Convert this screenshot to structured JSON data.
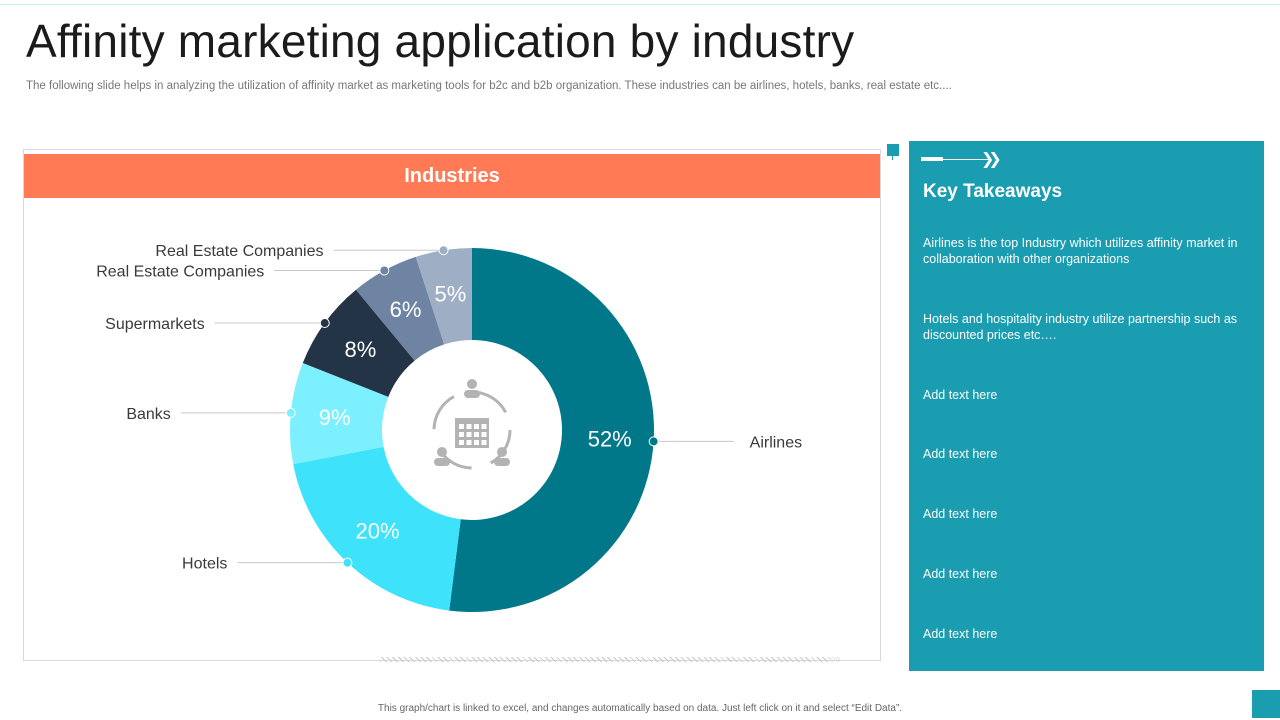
{
  "slide": {
    "title": "Affinity marketing application by industry",
    "subtitle": "The following slide helps in analyzing the utilization of affinity market as marketing tools for b2c and b2b organization. These industries can be airlines, hotels, banks, real estate etc....",
    "footer": "This graph/chart is linked to excel, and changes automatically based on data. Just left click on it and select “Edit Data”."
  },
  "chart_header": "Industries",
  "center_icon": "building-people-icon",
  "chart_data": {
    "type": "pie",
    "donut": true,
    "title": "Industries",
    "categories": [
      "Airlines",
      "Hotels",
      "Banks",
      "Supermarkets",
      "Real Estate Companies",
      "Real Estate Companies"
    ],
    "values": [
      52,
      20,
      9,
      8,
      6,
      5
    ],
    "value_labels": [
      "52%",
      "20%",
      "9%",
      "8%",
      "6%",
      "5%"
    ],
    "colors": [
      "#007889",
      "#3ee3fb",
      "#7df0ff",
      "#243447",
      "#6e84a2",
      "#9eaec5"
    ],
    "label_colors": [
      "#ffffff",
      "#ffffff",
      "#ffffff",
      "#ffffff",
      "#ffffff",
      "#ffffff"
    ],
    "start_angle_deg": 0,
    "direction": "clockwise"
  },
  "takeaways": {
    "heading": "Key Takeaways",
    "items": [
      "Airlines is the top Industry which utilizes affinity market in collaboration with other organizations",
      "Hotels and hospitality industry utilize partnership such as discounted prices etc….",
      "Add text here",
      "Add text here",
      "Add text here",
      "Add text here",
      "Add text here"
    ]
  },
  "colors": {
    "accent_teal": "#1a9db0",
    "header_orange": "#ff7a55"
  }
}
